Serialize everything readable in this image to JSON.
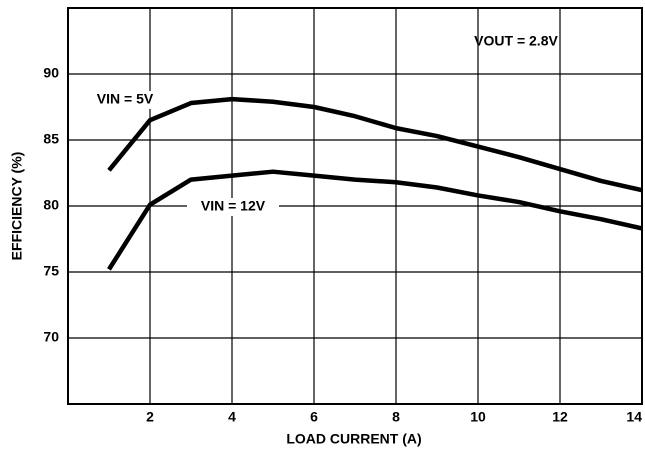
{
  "chart_data": {
    "type": "line",
    "x_label": "LOAD CURRENT (A)",
    "y_label": "EFFICIENCY (%)",
    "annotation": "VOUT = 2.8V",
    "x": [
      1,
      2,
      3,
      4,
      5,
      6,
      7,
      8,
      9,
      10,
      11,
      12,
      13,
      14
    ],
    "series": [
      {
        "name": "VIN = 5V",
        "color": "#000000",
        "values": [
          82.7,
          86.5,
          87.8,
          88.1,
          87.9,
          87.5,
          86.8,
          85.9,
          85.3,
          84.5,
          83.7,
          82.8,
          81.9,
          81.2
        ]
      },
      {
        "name": "VIN = 12V",
        "color": "#000000",
        "values": [
          75.2,
          80.1,
          82.0,
          82.3,
          82.6,
          82.3,
          82.0,
          81.8,
          81.4,
          80.8,
          80.3,
          79.6,
          79.0,
          78.3
        ]
      }
    ],
    "xlim": [
      0,
      14
    ],
    "xticks": [
      2,
      4,
      6,
      8,
      10,
      12,
      14
    ],
    "ylim": [
      65,
      95
    ],
    "yticks": [
      70,
      75,
      80,
      85,
      90
    ],
    "grid": true
  }
}
